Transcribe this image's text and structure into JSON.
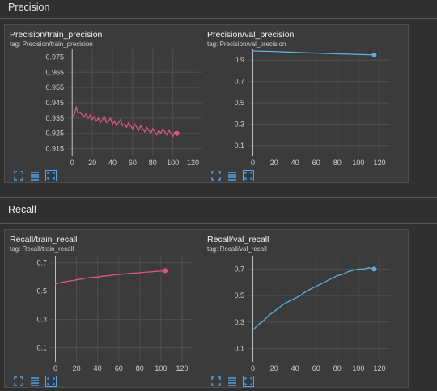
{
  "sections": [
    {
      "title": "Precision"
    },
    {
      "title": "Recall"
    }
  ],
  "cards": [
    {
      "title": "Precision/train_precision",
      "tag": "tag: Precision/train_precision"
    },
    {
      "title": "Precision/val_precision",
      "tag": "tag: Precision/val_precision"
    },
    {
      "title": "Recall/train_recall",
      "tag": "tag: Recall/train_recall"
    },
    {
      "title": "Recall/val_recall",
      "tag": "tag: Recall/val_recall"
    }
  ],
  "icons": {
    "fit": "fit-to-screen-icon",
    "data": "show-data-table-icon",
    "zoom": "toggle-y-axis-icon"
  },
  "colors": {
    "train": "#e0577e",
    "val": "#5bb0dd",
    "accent": "#5aa3e6"
  },
  "chart_data": [
    {
      "type": "line",
      "title": "Precision/train_precision",
      "xlim": [
        -5,
        130
      ],
      "ylim": [
        0.91,
        0.98
      ],
      "xticks": [
        "0",
        "20",
        "40",
        "60",
        "80",
        "100",
        "120"
      ],
      "yticks": [
        "0.915",
        "0.925",
        "0.935",
        "0.945",
        "0.955",
        "0.965",
        "0.975"
      ],
      "series": [
        {
          "color": "#e0577e",
          "x": [
            0,
            2,
            4,
            6,
            8,
            10,
            12,
            14,
            16,
            18,
            20,
            22,
            24,
            26,
            28,
            30,
            32,
            34,
            36,
            38,
            40,
            42,
            44,
            46,
            48,
            50,
            52,
            54,
            56,
            58,
            60,
            62,
            64,
            66,
            68,
            70,
            72,
            74,
            76,
            78,
            80,
            82,
            84,
            86,
            88,
            90,
            92,
            94,
            96,
            98,
            100,
            102,
            104
          ],
          "y": [
            0.936,
            0.937,
            0.942,
            0.938,
            0.939,
            0.937,
            0.936,
            0.938,
            0.935,
            0.937,
            0.934,
            0.936,
            0.933,
            0.935,
            0.932,
            0.934,
            0.936,
            0.932,
            0.933,
            0.935,
            0.931,
            0.933,
            0.93,
            0.932,
            0.934,
            0.93,
            0.931,
            0.929,
            0.932,
            0.93,
            0.928,
            0.931,
            0.929,
            0.927,
            0.93,
            0.928,
            0.926,
            0.929,
            0.927,
            0.925,
            0.928,
            0.926,
            0.924,
            0.927,
            0.925,
            0.928,
            0.926,
            0.924,
            0.927,
            0.925,
            0.923,
            0.926,
            0.925
          ]
        }
      ]
    },
    {
      "type": "line",
      "title": "Precision/val_precision",
      "xlim": [
        -5,
        130
      ],
      "ylim": [
        0.0,
        1.0
      ],
      "xticks": [
        "0",
        "20",
        "40",
        "60",
        "80",
        "100",
        "120"
      ],
      "yticks": [
        "0.1",
        "0.3",
        "0.5",
        "0.7",
        "0.9"
      ],
      "series": [
        {
          "color": "#5bb0dd",
          "x": [
            0,
            10,
            20,
            30,
            40,
            50,
            60,
            70,
            80,
            90,
            100,
            110,
            115
          ],
          "y": [
            0.985,
            0.982,
            0.98,
            0.976,
            0.972,
            0.968,
            0.965,
            0.961,
            0.958,
            0.955,
            0.952,
            0.95,
            0.948
          ]
        }
      ]
    },
    {
      "type": "line",
      "title": "Recall/train_recall",
      "xlim": [
        -5,
        130
      ],
      "ylim": [
        0.0,
        0.75
      ],
      "xticks": [
        "0",
        "20",
        "40",
        "60",
        "80",
        "100",
        "120"
      ],
      "yticks": [
        "0.1",
        "0.3",
        "0.5",
        "0.7"
      ],
      "series": [
        {
          "color": "#e0577e",
          "x": [
            0,
            4,
            8,
            12,
            16,
            20,
            24,
            28,
            32,
            36,
            40,
            44,
            48,
            52,
            56,
            60,
            64,
            68,
            72,
            76,
            80,
            84,
            88,
            92,
            96,
            100,
            104
          ],
          "y": [
            0.55,
            0.56,
            0.565,
            0.57,
            0.575,
            0.58,
            0.585,
            0.59,
            0.595,
            0.598,
            0.6,
            0.605,
            0.608,
            0.612,
            0.615,
            0.618,
            0.62,
            0.623,
            0.626,
            0.628,
            0.63,
            0.633,
            0.635,
            0.637,
            0.64,
            0.642,
            0.645
          ]
        }
      ]
    },
    {
      "type": "line",
      "title": "Recall/val_recall",
      "xlim": [
        -5,
        130
      ],
      "ylim": [
        0.0,
        0.8
      ],
      "xticks": [
        "0",
        "20",
        "40",
        "60",
        "80",
        "100",
        "120"
      ],
      "yticks": [
        "0.1",
        "0.3",
        "0.5",
        "0.7"
      ],
      "series": [
        {
          "color": "#5bb0dd",
          "x": [
            0,
            5,
            10,
            15,
            20,
            25,
            30,
            35,
            40,
            45,
            50,
            55,
            60,
            65,
            70,
            75,
            80,
            85,
            90,
            95,
            100,
            105,
            110,
            115
          ],
          "y": [
            0.24,
            0.28,
            0.31,
            0.35,
            0.38,
            0.41,
            0.44,
            0.46,
            0.48,
            0.5,
            0.53,
            0.55,
            0.57,
            0.59,
            0.61,
            0.63,
            0.65,
            0.66,
            0.68,
            0.69,
            0.7,
            0.7,
            0.71,
            0.7
          ]
        }
      ]
    }
  ]
}
